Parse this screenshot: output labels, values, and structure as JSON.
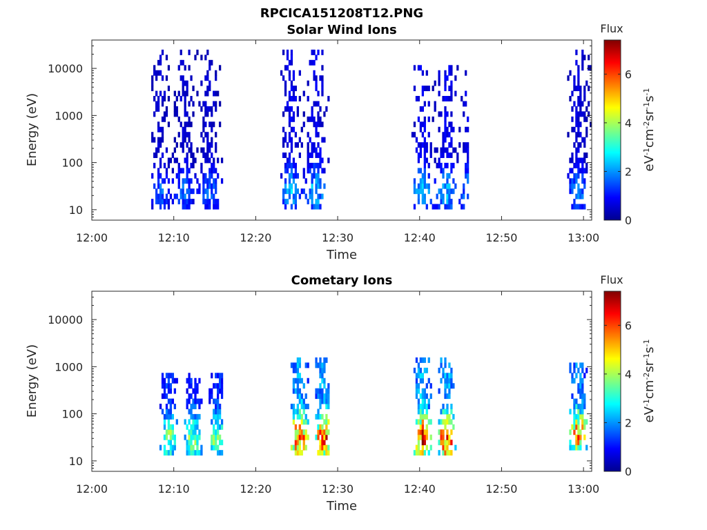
{
  "figure": {
    "title": "RPCICA151208T12.PNG"
  },
  "colormap": "jet",
  "chart_data": [
    {
      "type": "heatmap",
      "title": "Solar Wind Ions",
      "xlabel": "Time",
      "ylabel": "Energy (eV)",
      "y_scale": "log",
      "xlim": [
        "12:00",
        "13:01"
      ],
      "ylim": [
        6,
        40000
      ],
      "x_ticks": [
        "12:00",
        "12:10",
        "12:20",
        "12:30",
        "12:40",
        "12:50",
        "13:00"
      ],
      "y_ticks": [
        "10",
        "100",
        "1000",
        "10000"
      ],
      "colorbar": {
        "title": "Flux",
        "label": "eV-1cm-2sr-1s-1",
        "range": [
          0,
          7.4
        ],
        "ticks": [
          "0",
          "2",
          "4",
          "6"
        ]
      },
      "grid": false,
      "bursts": [
        {
          "start": "12:07",
          "end": "12:16",
          "emin": 10,
          "emax": 20000,
          "level": 1.6
        },
        {
          "start": "12:23",
          "end": "12:29",
          "emin": 10,
          "emax": 20000,
          "level": 2.2
        },
        {
          "start": "12:39",
          "end": "12:46",
          "emin": 10,
          "emax": 10000,
          "level": 2.2
        },
        {
          "start": "12:58",
          "end": "13:01",
          "emin": 10,
          "emax": 20000,
          "level": 1.8
        }
      ]
    },
    {
      "type": "heatmap",
      "title": "Cometary Ions",
      "xlabel": "Time",
      "ylabel": "Energy (eV)",
      "y_scale": "log",
      "xlim": [
        "12:00",
        "13:01"
      ],
      "ylim": [
        6,
        40000
      ],
      "x_ticks": [
        "12:00",
        "12:10",
        "12:20",
        "12:30",
        "12:40",
        "12:50",
        "13:00"
      ],
      "y_ticks": [
        "10",
        "100",
        "1000",
        "10000"
      ],
      "colorbar": {
        "title": "Flux",
        "label": "eV-1cm-2sr-1s-1",
        "range": [
          0,
          7.4
        ],
        "ticks": [
          "0",
          "2",
          "4",
          "6"
        ]
      },
      "grid": false,
      "bursts": [
        {
          "start": "12:08",
          "end": "12:16",
          "emin": 12,
          "emax": 600,
          "level": 3.6
        },
        {
          "start": "12:24",
          "end": "12:29",
          "emin": 12,
          "emax": 1200,
          "level": 5.8
        },
        {
          "start": "12:39",
          "end": "12:45",
          "emin": 12,
          "emax": 1200,
          "level": 6.0
        },
        {
          "start": "12:58",
          "end": "13:01",
          "emin": 15,
          "emax": 1000,
          "level": 5.2
        }
      ]
    }
  ]
}
